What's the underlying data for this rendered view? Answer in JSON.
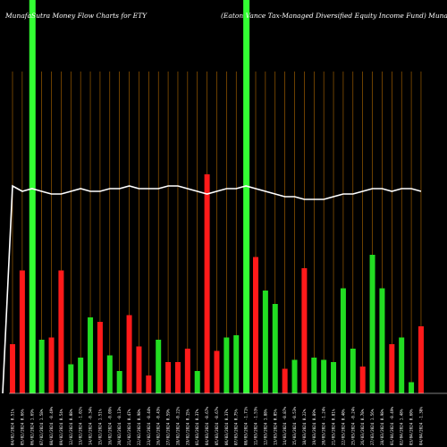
{
  "chart_data": {
    "type": "bar",
    "title_left": "MunafaSutra  Money Flow  Charts for ETY",
    "title_right": "(Eaton  Vance   Tax-Managed Diversified Equity Income   Fund) Munafa",
    "colors": {
      "background": "#000000",
      "up": "#22dd22",
      "down": "#ff1a1a",
      "highlight": "#33ff33",
      "grid": "#b36a00",
      "line": "#ffffff"
    },
    "ylim": [
      0,
      100
    ],
    "categories": [
      "04/02/2024 0.51%",
      "05/02/2024 0.66%",
      "06/02/2024 1.69%",
      "07/02/2024 1.58%",
      "08/02/2024 -0.49%",
      "09/02/2024 0.54%",
      "12/02/2024 0.08%",
      "13/02/2024 -1.02%",
      "14/02/2024 -0.34%",
      "15/02/2024 1.51%",
      "16/02/2024 -0.09%",
      "20/02/2024 -0.13%",
      "21/02/2024 0.47%",
      "22/02/2024 0.98%",
      "23/02/2024 -0.44%",
      "26/02/2024 -0.43%",
      "27/02/2024 0.59%",
      "28/02/2024 -0.22%",
      "29/02/2024 0.15%",
      "01/03/2024 0.37%",
      "04/03/2024 -0.67%",
      "05/03/2024 -0.67%",
      "06/03/2024 0.37%",
      "07/03/2024 0.75%",
      "08/03/2024 -1.71%",
      "11/03/2024 -1.53%",
      "12/03/2024 1.88%",
      "13/03/2024 0.05%",
      "14/03/2024 -0.87%",
      "15/03/2024 -0.53%",
      "18/03/2024 0.22%",
      "19/03/2024 0.89%",
      "20/03/2024 -1.24%",
      "21/03/2024 0.81%",
      "22/03/2024 0.40%",
      "25/03/2024 -0.24%",
      "26/03/2024 0.78%",
      "27/03/2024 1.56%",
      "28/03/2024 0.98%",
      "01/04/2024 -0.49%",
      "02/04/2024 1.48%",
      "03/04/2024 0.60%",
      "04/04/2024 -1.38%"
    ],
    "values": [
      22,
      55,
      100,
      24,
      25,
      55,
      13,
      16,
      34,
      32,
      17,
      10,
      35,
      21,
      8,
      24,
      14,
      14,
      20,
      10,
      98,
      19,
      25,
      26,
      100,
      61,
      46,
      40,
      11,
      15,
      56,
      16,
      15,
      14,
      47,
      20,
      12,
      62,
      47,
      22,
      25,
      5,
      30
    ],
    "directions": [
      "down",
      "down",
      "up",
      "up",
      "down",
      "down",
      "up",
      "up",
      "up",
      "down",
      "up",
      "up",
      "down",
      "down",
      "down",
      "up",
      "down",
      "down",
      "down",
      "up",
      "down",
      "down",
      "up",
      "up",
      "up",
      "down",
      "up",
      "up",
      "down",
      "up",
      "down",
      "up",
      "up",
      "up",
      "up",
      "up",
      "down",
      "up",
      "up",
      "down",
      "up",
      "up",
      "down"
    ],
    "highlight_index": [
      2,
      24
    ],
    "line_values": [
      84,
      82,
      83,
      82,
      81,
      81,
      82,
      83,
      82,
      82,
      83,
      83,
      84,
      83,
      83,
      83,
      84,
      84,
      83,
      82,
      81,
      82,
      83,
      83,
      84,
      83,
      82,
      81,
      80,
      80,
      79,
      79,
      79,
      80,
      81,
      81,
      82,
      83,
      83,
      82,
      83,
      83,
      82
    ]
  }
}
